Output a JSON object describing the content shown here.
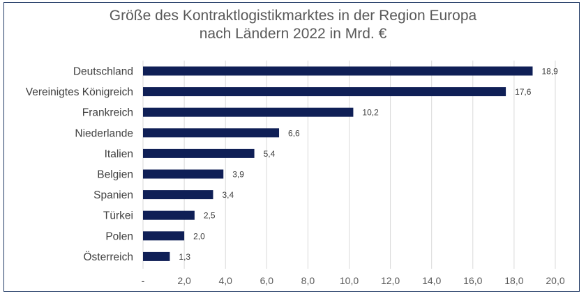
{
  "chart_data": {
    "type": "bar",
    "orientation": "horizontal",
    "title_line1": "Größe des Kontraktlogistikmarktes in der Region Europa",
    "title_line2": "nach Ländern 2022 in Mrd. €",
    "categories": [
      "Deutschland",
      "Vereinigtes Königreich",
      "Frankreich",
      "Niederlande",
      "Italien",
      "Belgien",
      "Spanien",
      "Türkei",
      "Polen",
      "Österreich"
    ],
    "values": [
      18.9,
      17.6,
      10.2,
      6.6,
      5.4,
      3.9,
      3.4,
      2.5,
      2.0,
      1.3
    ],
    "value_labels": [
      "18,9",
      "17,6",
      "10,2",
      "6,6",
      "5,4",
      "3,9",
      "3,4",
      "2,5",
      "2,0",
      "1,3"
    ],
    "x_ticks": [
      0,
      2,
      4,
      6,
      8,
      10,
      12,
      14,
      16,
      18,
      20
    ],
    "x_tick_labels": [
      "-",
      "2,0",
      "4,0",
      "6,0",
      "8,0",
      "10,0",
      "12,0",
      "14,0",
      "16,0",
      "18,0",
      "20,0"
    ],
    "xlim": [
      0,
      20
    ],
    "xlabel": "",
    "ylabel": "",
    "grid": "vertical",
    "legend": "none",
    "colors": {
      "bar": "#0f1f56",
      "grid": "#d9d9d9",
      "frame": "#1f3864"
    }
  }
}
